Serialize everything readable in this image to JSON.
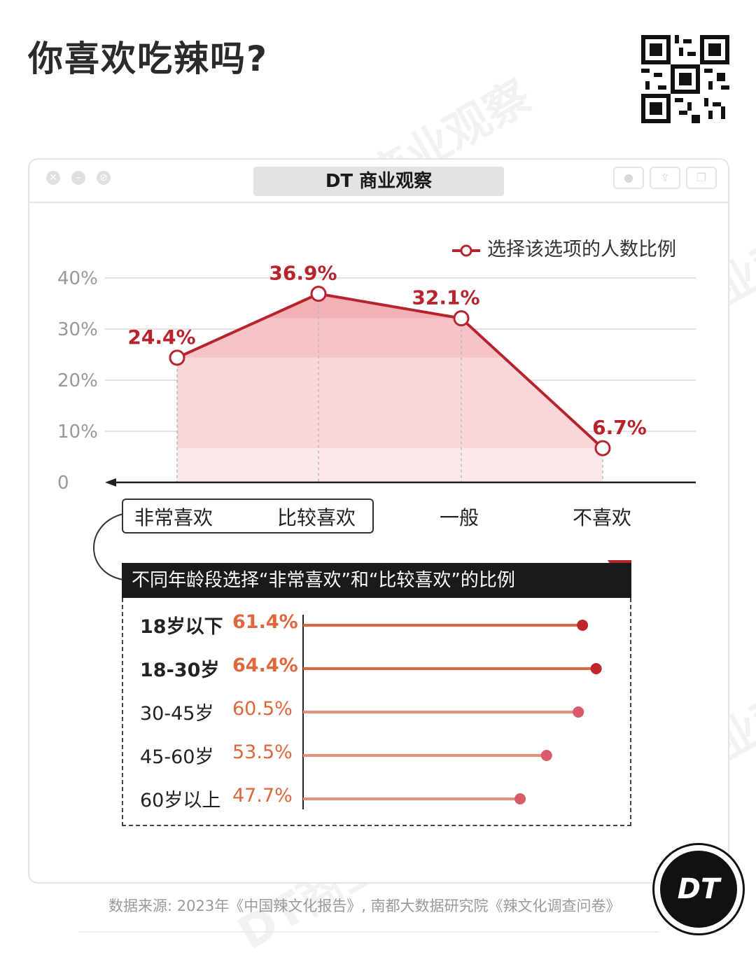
{
  "header": {
    "title": "你喜欢吃辣吗?"
  },
  "window": {
    "tab_title": "DT 商业观察"
  },
  "watermark": "DT商业观察",
  "colors": {
    "accent": "#b8242e",
    "area": "#f4aab0",
    "bar_orange": "#e0663b",
    "bar_salmon": "#e8907e"
  },
  "chart_data": [
    {
      "type": "line",
      "title": "",
      "legend": "选择该选项的人数比例",
      "legend_position": "top-right",
      "categories": [
        "非常喜欢",
        "比较喜欢",
        "一般",
        "不喜欢"
      ],
      "series": [
        {
          "name": "选择该选项的人数比例",
          "values": [
            24.4,
            36.9,
            32.1,
            6.7
          ]
        }
      ],
      "data_labels": [
        "24.4%",
        "36.9%",
        "32.1%",
        "6.7%"
      ],
      "y_ticks": [
        "0",
        "10%",
        "20%",
        "30%",
        "40%"
      ],
      "ylim": [
        0,
        40
      ],
      "grid": true,
      "filled_area": true
    },
    {
      "type": "bar",
      "orientation": "horizontal",
      "style": "lollipop",
      "title": "不同年龄段选择“非常喜欢”和“比较喜欢”的比例",
      "categories": [
        "18岁以下",
        "18-30岁",
        "30-45岁",
        "45-60岁",
        "60岁以上"
      ],
      "values": [
        61.4,
        64.4,
        60.5,
        53.5,
        47.7
      ],
      "data_labels": [
        "61.4%",
        "64.4%",
        "60.5%",
        "53.5%",
        "47.7%"
      ],
      "bold_categories": [
        "18岁以下",
        "18-30岁"
      ]
    }
  ],
  "footer": {
    "source": "数据来源: 2023年《中国辣文化报告》, 南都大数据研究院《辣文化调查问卷》"
  },
  "logo": {
    "text": "DT"
  }
}
